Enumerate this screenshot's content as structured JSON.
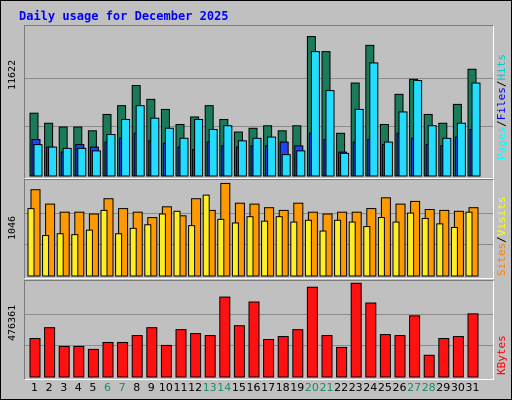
{
  "title": "Daily usage for December 2025",
  "colors": {
    "hits": "#00cccc",
    "files": "#0000ff",
    "pages": "#00ffff",
    "visits": "#ff8000",
    "sites": "#ffff00",
    "kbytes": "#ff0000",
    "weekend_day": "#1e8a6a",
    "hits_bar": "#1a7a5a",
    "files_bar": "#2244ee",
    "pages_bar": "#22ddff",
    "visits_bar": "#ff9900",
    "sites_bar": "#ffee22",
    "kbytes_bar": "#ff1111"
  },
  "labels": {
    "pages": "Pages",
    "files": "Files",
    "hits": "Hits",
    "sites": "Sites",
    "visits": "Visits",
    "kbytes": "KBytes",
    "sep": "/"
  },
  "chart_data": [
    {
      "type": "bar",
      "title": "Daily usage for December 2025",
      "categories": [
        "1",
        "2",
        "3",
        "4",
        "5",
        "6",
        "7",
        "8",
        "9",
        "10",
        "11",
        "12",
        "13",
        "14",
        "15",
        "16",
        "17",
        "18",
        "19",
        "20",
        "21",
        "22",
        "23",
        "24",
        "25",
        "26",
        "27",
        "28",
        "29",
        "30",
        "31"
      ],
      "weekend_days": [
        6,
        7,
        13,
        14,
        20,
        21,
        27,
        28
      ],
      "ymax_label": "11622",
      "ylim": [
        0,
        11622
      ],
      "grid": true,
      "series": [
        {
          "name": "Hits",
          "values": [
            5000,
            4200,
            3900,
            3900,
            3600,
            4900,
            5600,
            7200,
            6100,
            5300,
            4100,
            4700,
            5600,
            4500,
            3500,
            3800,
            4000,
            3600,
            4000,
            11100,
            9900,
            3400,
            7400,
            10400,
            4100,
            6500,
            7700,
            4900,
            4200,
            5700,
            8500
          ]
        },
        {
          "name": "Files",
          "values": [
            2900,
            2300,
            1900,
            2500,
            2300,
            2700,
            3000,
            3400,
            2800,
            2600,
            2300,
            2100,
            2700,
            2400,
            2300,
            2400,
            2400,
            2700,
            2400,
            3400,
            2900,
            1900,
            2700,
            2900,
            2500,
            3400,
            3000,
            2500,
            2400,
            3100,
            3700
          ]
        },
        {
          "name": "Pages",
          "values": [
            2500,
            2300,
            2200,
            2200,
            2000,
            3300,
            4500,
            5600,
            4600,
            3800,
            3000,
            4500,
            3700,
            4000,
            2800,
            3000,
            3100,
            1700,
            2000,
            9900,
            6800,
            1800,
            5300,
            9000,
            2700,
            5100,
            7600,
            4000,
            3000,
            4200,
            7400
          ]
        }
      ]
    },
    {
      "type": "bar",
      "ymax_label": "1046",
      "ylim": [
        0,
        1046
      ],
      "grid": true,
      "categories": [
        "1",
        "2",
        "3",
        "4",
        "5",
        "6",
        "7",
        "8",
        "9",
        "10",
        "11",
        "12",
        "13",
        "14",
        "15",
        "16",
        "17",
        "18",
        "19",
        "20",
        "21",
        "22",
        "23",
        "24",
        "25",
        "26",
        "27",
        "28",
        "29",
        "30",
        "31"
      ],
      "series": [
        {
          "name": "Visits",
          "values": [
            960,
            800,
            710,
            710,
            690,
            860,
            750,
            710,
            650,
            770,
            670,
            860,
            730,
            1030,
            810,
            800,
            760,
            730,
            810,
            710,
            690,
            710,
            710,
            750,
            870,
            800,
            830,
            740,
            730,
            720,
            760
          ]
        },
        {
          "name": "Sites",
          "values": [
            750,
            450,
            470,
            460,
            510,
            730,
            470,
            530,
            570,
            690,
            720,
            560,
            900,
            630,
            590,
            660,
            610,
            660,
            600,
            620,
            500,
            620,
            600,
            550,
            650,
            600,
            700,
            640,
            580,
            540,
            710
          ]
        }
      ]
    },
    {
      "type": "bar",
      "ymax_label": "476361",
      "ylim": [
        0,
        476361
      ],
      "grid": true,
      "categories": [
        "1",
        "2",
        "3",
        "4",
        "5",
        "6",
        "7",
        "8",
        "9",
        "10",
        "11",
        "12",
        "13",
        "14",
        "15",
        "16",
        "17",
        "18",
        "19",
        "20",
        "21",
        "22",
        "23",
        "24",
        "25",
        "26",
        "27",
        "28",
        "29",
        "30",
        "31"
      ],
      "series": [
        {
          "name": "KBytes",
          "values": [
            195000,
            250000,
            155000,
            155000,
            140000,
            175000,
            175000,
            210000,
            250000,
            160000,
            240000,
            220000,
            210000,
            405000,
            260000,
            380000,
            190000,
            205000,
            240000,
            455000,
            210000,
            150000,
            475000,
            375000,
            215000,
            210000,
            310000,
            110000,
            195000,
            205000,
            320000
          ]
        }
      ]
    }
  ]
}
